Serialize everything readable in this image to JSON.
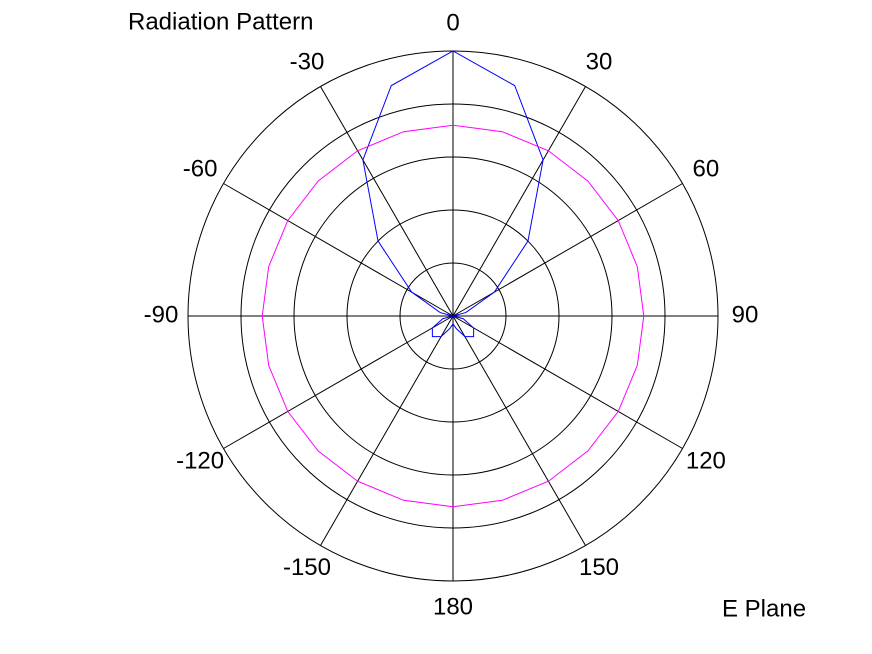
{
  "chart_data": {
    "type": "polar",
    "title": "Radiation Pattern",
    "annotation": "E Plane",
    "theta": [
      -180,
      -165,
      -150,
      -135,
      -120,
      -105,
      -90,
      -75,
      -60,
      -45,
      -30,
      -15,
      0,
      15,
      30,
      45,
      60,
      75,
      90,
      105,
      120,
      135,
      150,
      165,
      180
    ],
    "thetaticks": [
      0,
      30,
      60,
      90,
      120,
      150,
      180,
      -150,
      -120,
      -90,
      -60,
      -30
    ],
    "rlim": [
      0,
      1
    ],
    "rticks": [
      0.2,
      0.4,
      0.6,
      0.8,
      1
    ],
    "series": [
      {
        "color": "#0000ff",
        "values": [
          0.03,
          0.05,
          0.09,
          0.11,
          0.09,
          0.04,
          0.0,
          0.05,
          0.18,
          0.4,
          0.68,
          0.9,
          1.0,
          0.9,
          0.68,
          0.4,
          0.18,
          0.05,
          0.0,
          0.04,
          0.09,
          0.11,
          0.09,
          0.05,
          0.03
        ]
      },
      {
        "color": "#ff00ff",
        "values": [
          0.72,
          0.72,
          0.72,
          0.72,
          0.72,
          0.72,
          0.72,
          0.72,
          0.72,
          0.72,
          0.72,
          0.72,
          0.72,
          0.72,
          0.72,
          0.72,
          0.72,
          0.72,
          0.72,
          0.72,
          0.72,
          0.72,
          0.72,
          0.72,
          0.72
        ]
      }
    ]
  }
}
